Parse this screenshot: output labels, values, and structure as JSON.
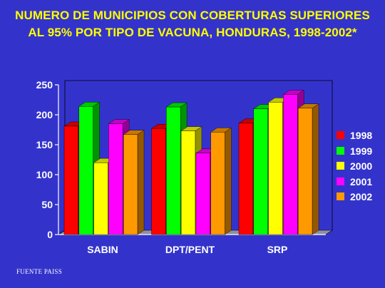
{
  "title": {
    "line1": "NUMERO DE MUNICIPIOS CON COBERTURAS SUPERIORES",
    "line2": "AL 95% POR TIPO DE VACUNA, HONDURAS, 1998-2002*"
  },
  "source": "FUENTE PAISS",
  "colors": {
    "background": "#3333cc",
    "title": "#ffff00",
    "axis_text": "#ffffff"
  },
  "chart_data": {
    "type": "bar",
    "title": "NUMERO DE MUNICIPIOS CON COBERTURAS SUPERIORES AL 95% POR TIPO DE VACUNA, HONDURAS, 1998-2002*",
    "xlabel": "",
    "ylabel": "",
    "ylim": [
      0,
      250
    ],
    "yticks": [
      0,
      50,
      100,
      150,
      200,
      250
    ],
    "grid": false,
    "three_d": true,
    "legend_position": "right",
    "categories": [
      "SABIN",
      "DPT/PENT",
      "SRP"
    ],
    "series": [
      {
        "name": "1998",
        "color": "#ff0000",
        "values": [
          181,
          177,
          186
        ]
      },
      {
        "name": "1999",
        "color": "#00ff00",
        "values": [
          214,
          213,
          210
        ]
      },
      {
        "name": "2000",
        "color": "#ffff00",
        "values": [
          120,
          173,
          221
        ]
      },
      {
        "name": "2001",
        "color": "#ff00ff",
        "values": [
          185,
          136,
          234
        ]
      },
      {
        "name": "2002",
        "color": "#ff9900",
        "values": [
          167,
          171,
          211
        ]
      }
    ]
  }
}
